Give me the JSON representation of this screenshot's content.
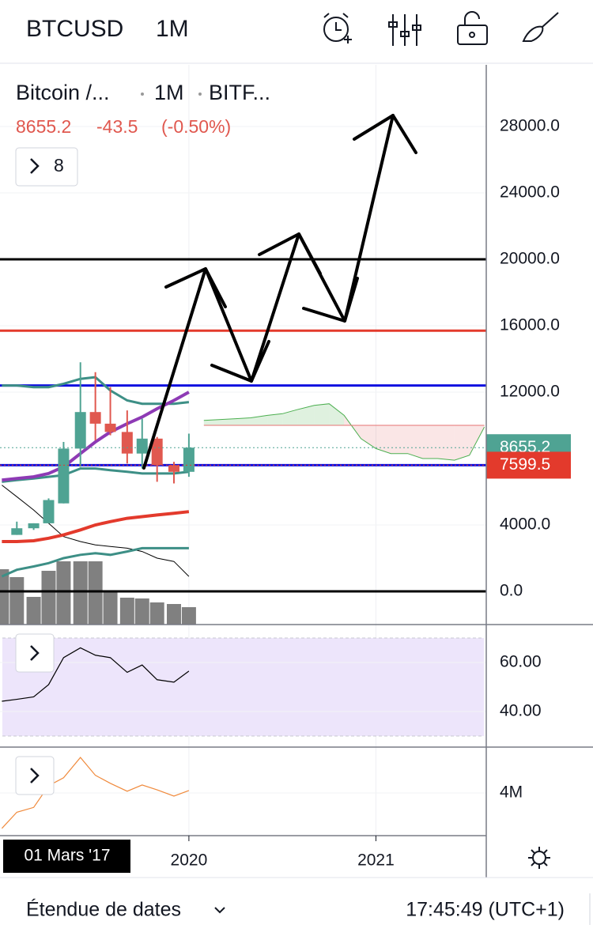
{
  "header": {
    "symbol": "BTCUSD",
    "interval": "1M"
  },
  "legend": {
    "name": "Bitcoin /...",
    "interval": "1M",
    "exchange": "BITF...",
    "last": "8655.2",
    "change": "-43.5",
    "change_pct": "(-0.50%)",
    "indicators": "8"
  },
  "x_axis": {
    "cursor_label": "01 Mars '17"
  },
  "footer": {
    "range": "Étendue de dates",
    "clock": "17:45:49 (UTC+1)"
  },
  "chart_data": [
    {
      "type": "candlestick",
      "xlim": [
        2018.99,
        2021.59
      ],
      "xticks": [
        2020,
        2021
      ],
      "x": [
        2019.08,
        2019.17,
        2019.25,
        2019.33,
        2019.42,
        2019.5,
        2019.58,
        2019.67,
        2019.75,
        2019.83,
        2019.92,
        2020.0
      ],
      "open": [
        3400,
        3800,
        4100,
        5300,
        8600,
        10800,
        10100,
        9600,
        8300,
        9200,
        7600,
        7200
      ],
      "high": [
        4200,
        4100,
        5600,
        9000,
        13800,
        13200,
        12300,
        10900,
        10400,
        9300,
        7800,
        9500
      ],
      "low": [
        3400,
        3700,
        4100,
        5300,
        7500,
        9100,
        9400,
        7700,
        7400,
        6600,
        6500,
        6900
      ],
      "close": [
        3800,
        4100,
        5500,
        8600,
        10800,
        10100,
        9600,
        8300,
        9200,
        7600,
        7200,
        8655
      ],
      "up_color": "#4fa393",
      "down_color": "#e0584f",
      "ylim": [
        -2000,
        31714
      ],
      "yticks": [
        {
          "value": 0,
          "label": "0.0"
        },
        {
          "value": 4000,
          "label": "4000.0"
        },
        {
          "value": 12000,
          "label": "12000.0"
        },
        {
          "value": 16000,
          "label": "16000.0"
        },
        {
          "value": 20000,
          "label": "20000.0"
        },
        {
          "value": 24000,
          "label": "24000.0"
        },
        {
          "value": 28000,
          "label": "28000.0"
        }
      ],
      "hlines": [
        {
          "value": 20000,
          "color": "#000000"
        },
        {
          "value": 15700,
          "color": "#e33a2c"
        },
        {
          "value": 12400,
          "color": "#1010e0"
        },
        {
          "value": 7600,
          "color": "#1010e0"
        },
        {
          "value": 0,
          "color": "#000000"
        }
      ],
      "indicator_x": [
        2019.0,
        2019.08,
        2019.17,
        2019.25,
        2019.33,
        2019.42,
        2019.5,
        2019.58,
        2019.67,
        2019.75,
        2019.83,
        2019.92,
        2020.0
      ],
      "indicators": [
        {
          "color": "#000000",
          "width": 1,
          "values": [
            6400,
            5700,
            4900,
            4100,
            3300,
            3000,
            2800,
            2700,
            2600,
            2400,
            2000,
            1800,
            900
          ]
        },
        {
          "color": "#3d8f86",
          "width": 3,
          "values": [
            900,
            1300,
            1500,
            1700,
            2000,
            2200,
            2300,
            2200,
            2400,
            2600,
            2600,
            2600,
            2600
          ]
        },
        {
          "color": "#3d8f86",
          "width": 3,
          "values": [
            12400,
            12400,
            12300,
            12300,
            12500,
            12800,
            12900,
            12100,
            11500,
            11300,
            11300,
            11300,
            11400
          ]
        },
        {
          "color": "#3d8f86",
          "width": 3,
          "values": [
            6600,
            6700,
            6800,
            6900,
            7000,
            7400,
            7400,
            7300,
            7200,
            7100,
            7100,
            7100,
            7200
          ]
        },
        {
          "color": "#e33a2c",
          "width": 4,
          "values": [
            3000,
            3000,
            3050,
            3200,
            3400,
            3700,
            4000,
            4200,
            4400,
            4500,
            4600,
            4700,
            4800
          ]
        },
        {
          "color": "#8e3ab5",
          "width": 4,
          "values": [
            6700,
            6800,
            6900,
            7100,
            7500,
            8300,
            9000,
            9600,
            10100,
            10500,
            11000,
            11500,
            12000
          ]
        }
      ],
      "cloud": {
        "x": [
          2020.08,
          2020.17,
          2020.25,
          2020.33,
          2020.42,
          2020.5,
          2020.58,
          2020.67,
          2020.75,
          2020.83,
          2020.92,
          2021.0,
          2021.08,
          2021.17,
          2021.25,
          2021.33,
          2021.42,
          2021.5,
          2021.58
        ],
        "span_a": [
          10300,
          10350,
          10400,
          10450,
          10600,
          10700,
          10950,
          11200,
          11300,
          10600,
          9200,
          8600,
          8300,
          8300,
          8000,
          8000,
          7900,
          8200,
          9900
        ],
        "span_b": [
          10000,
          10000,
          10000,
          10000,
          10000,
          10000,
          10000,
          10000,
          10000,
          10000,
          10000,
          10000,
          10000,
          10000,
          10000,
          10000,
          10000,
          10000,
          10000
        ],
        "up_color": "#4caf50",
        "down_color": "#e57373"
      },
      "volume": {
        "values": [
          70,
          60,
          35,
          68,
          80,
          80,
          80,
          42,
          34,
          33,
          28,
          26,
          22
        ],
        "ylim": [
          0,
          100
        ],
        "color": "#808080"
      },
      "price_labels": [
        {
          "value": 8655.2,
          "color": "#4fa393"
        },
        {
          "value": 7599.5,
          "color": "#e33a2c"
        }
      ]
    },
    {
      "type": "line",
      "x": [
        2019.0,
        2019.08,
        2019.17,
        2019.25,
        2019.33,
        2019.42,
        2019.5,
        2019.58,
        2019.67,
        2019.75,
        2019.83,
        2019.92,
        2020.0
      ],
      "values": [
        44.2,
        45,
        46,
        51,
        62,
        66,
        63,
        62,
        56,
        59,
        53,
        52,
        56.5
      ],
      "color": "#000000",
      "ylim": [
        25.5,
        75.5
      ],
      "yticks": [
        {
          "value": 60,
          "label": "60.00"
        },
        {
          "value": 40,
          "label": "40.00"
        }
      ],
      "band": [
        30,
        70
      ],
      "band_color": "#ede5fb"
    },
    {
      "type": "line",
      "x": [
        2019.0,
        2019.08,
        2019.17,
        2019.25,
        2019.33,
        2019.42,
        2019.5,
        2019.58,
        2019.67,
        2019.75,
        2019.83,
        2019.92,
        2020.0
      ],
      "values": [
        2530000,
        3200000,
        3400000,
        4300000,
        4630000,
        5470000,
        4730000,
        4400000,
        4070000,
        4330000,
        4130000,
        3870000,
        4100000
      ],
      "color": "#f08a3c",
      "ylim": [
        2230000,
        5900000
      ],
      "yticks": [
        {
          "value": 4000000,
          "label": "4M"
        }
      ]
    }
  ]
}
